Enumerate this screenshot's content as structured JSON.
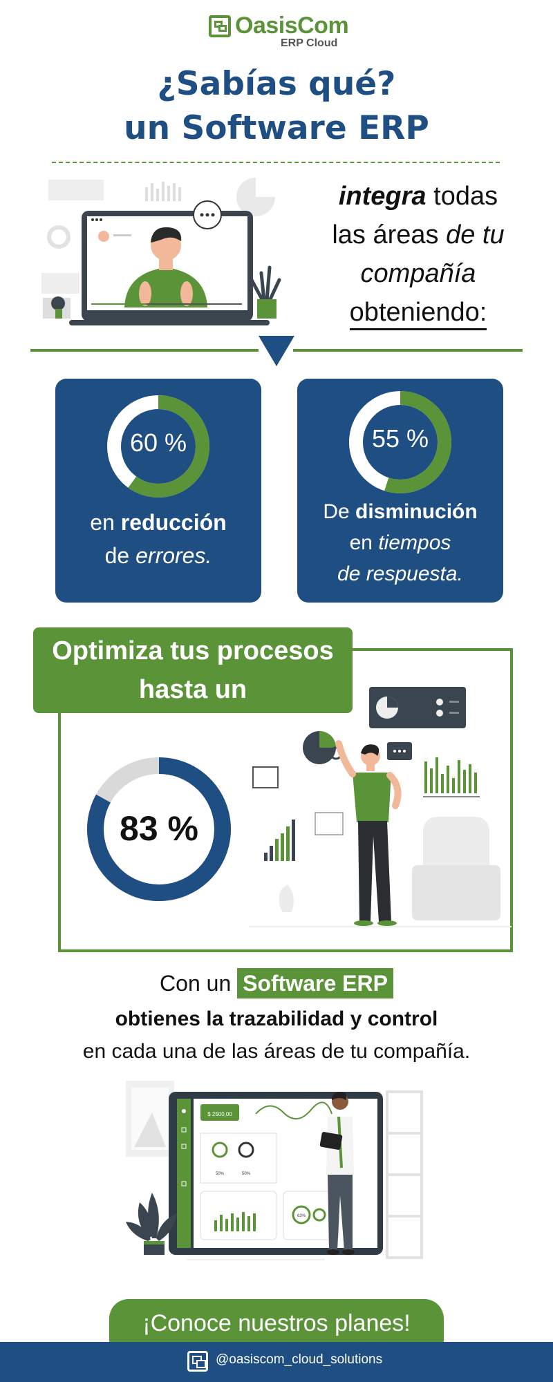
{
  "brand": {
    "name": "OasisCom",
    "subtitle": "ERP Cloud"
  },
  "headline": {
    "line1": "¿Sabías qué?",
    "line2": "un Software ERP"
  },
  "intro": {
    "part1_bold": "integra",
    "part1_rest": " todas",
    "part2_plain": "las áreas ",
    "part2_italic": "de tu",
    "part3": "compañía",
    "part4": "obteniendo:"
  },
  "stats": [
    {
      "value": 60,
      "label": "60 %",
      "cap_plain": "en ",
      "cap_bold": "reducción",
      "cap2_plain": "de ",
      "cap2_italic": "errores."
    },
    {
      "value": 55,
      "label": "55 %",
      "cap_plain": "De ",
      "cap_bold": "disminución",
      "cap2_plain": "en  ",
      "cap2_italic": "tiempos",
      "cap3_italic": "de respuesta."
    }
  ],
  "optimize": {
    "line1": "Optimiza tus procesos",
    "line2": "hasta un",
    "value": 83,
    "label": "83 %"
  },
  "traceability": {
    "lead": "Con un ",
    "highlight": "Software ERP",
    "bold_line": "obtienes la trazabilidad y control",
    "line3": "en cada una de las áreas de tu compañía."
  },
  "dashboard": {
    "amount": "$ 2500,00",
    "pct_a": "50%",
    "pct_b": "50%",
    "pct_c": "63%"
  },
  "cta": {
    "label": "¡Conoce nuestros planes!"
  },
  "footer": {
    "handle": "@oasiscom_cloud_solutions",
    "icon": "oasiscom-logo-icon"
  },
  "colors": {
    "blue": "#1f4e82",
    "green": "#5a9338",
    "grey": "#d9d9d9"
  }
}
